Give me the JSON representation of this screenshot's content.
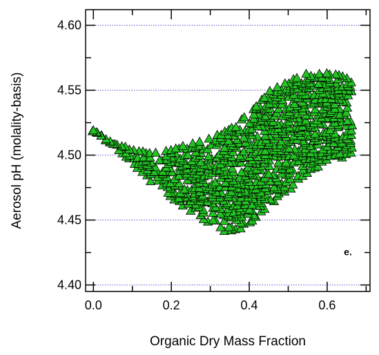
{
  "chart_data": {
    "type": "scatter",
    "title": "",
    "xlabel": "Organic Dry Mass Fraction",
    "ylabel": "Aerosol pH (molality-basis)",
    "xlim": [
      -0.02,
      0.71
    ],
    "ylim": [
      4.395,
      4.612
    ],
    "x_ticks": [
      0.0,
      0.2,
      0.4,
      0.6
    ],
    "x_tick_labels": [
      "0.0",
      "0.2",
      "0.4",
      "0.6"
    ],
    "y_ticks": [
      4.4,
      4.45,
      4.5,
      4.55,
      4.6
    ],
    "y_tick_labels": [
      "4.40",
      "4.45",
      "4.50",
      "4.55",
      "4.60"
    ],
    "grid": "horizontal dotted at major y ticks",
    "legend": "none",
    "annotation": "e.",
    "marker": "triangle",
    "marker_fill": "#22c322",
    "marker_edge": "#000000",
    "grid_color": "#5555cc",
    "points_note": "dense grid of points",
    "envelope": {
      "x": [
        0.0,
        0.05,
        0.1,
        0.15,
        0.2,
        0.25,
        0.3,
        0.35,
        0.4,
        0.45,
        0.5,
        0.55,
        0.6,
        0.65,
        0.67
      ],
      "y_max": [
        4.519,
        4.51,
        4.503,
        4.502,
        4.505,
        4.508,
        4.512,
        4.52,
        4.532,
        4.548,
        4.556,
        4.562,
        4.563,
        4.56,
        4.555
      ],
      "y_min": [
        4.519,
        4.508,
        4.495,
        4.48,
        4.468,
        4.458,
        4.448,
        4.44,
        4.448,
        4.462,
        4.474,
        4.488,
        4.496,
        4.5,
        4.502
      ]
    }
  }
}
